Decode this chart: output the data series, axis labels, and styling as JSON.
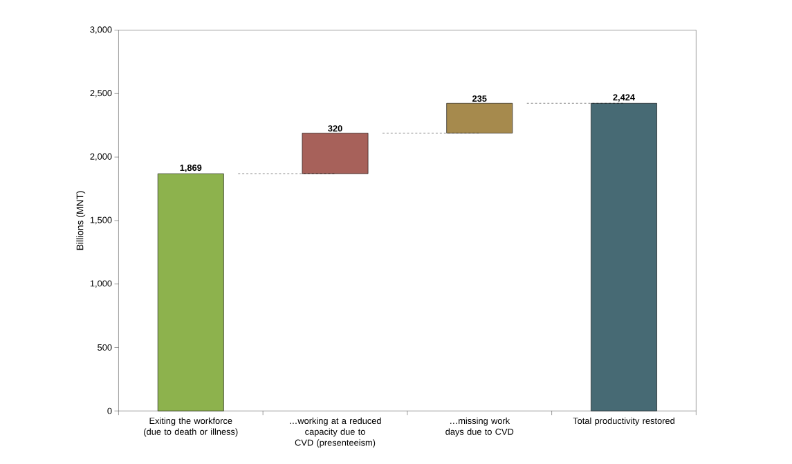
{
  "chart_data": {
    "type": "bar",
    "ylabel": "Billions (MNT)",
    "categories": [
      "Exiting the workforce (due to death or illness)",
      "…working at a reduced capacity due to CVD (presenteeism)",
      "…missing work days due to CVD",
      "Total productivity restored"
    ],
    "values": [
      1869,
      320,
      235,
      2424
    ],
    "base": [
      0,
      1869,
      2189,
      0
    ],
    "colors": [
      "#8db24d",
      "#a7615a",
      "#a68a4d",
      "#476a74"
    ],
    "value_labels": [
      "1,869",
      "320",
      "235",
      "2,424"
    ],
    "ylim": [
      0,
      3000
    ],
    "yticks": [
      0,
      500,
      {
        "value": 1000,
        "label": "1,000"
      },
      {
        "value": 1500,
        "label": "1,500"
      },
      {
        "value": 2000,
        "label": "2,000"
      },
      {
        "value": 2500,
        "label": "2,500"
      },
      {
        "value": 3000,
        "label": "3,000"
      }
    ]
  }
}
